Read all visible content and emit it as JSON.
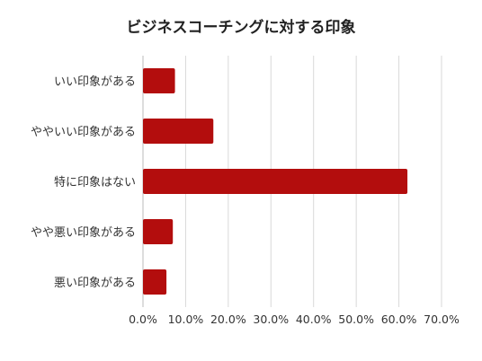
{
  "chart_data": {
    "type": "bar",
    "orientation": "horizontal",
    "title": "ビジネスコーチングに対する印象",
    "categories": [
      "いい印象がある",
      "ややいい印象がある",
      "特に印象はない",
      "やや悪い印象がある",
      "悪い印象がある"
    ],
    "values": [
      7.5,
      16.5,
      62.0,
      7.0,
      5.5
    ],
    "value_unit": "%",
    "xlim": [
      0,
      70
    ],
    "xticks": [
      "0.0%",
      "10.0%",
      "20.0%",
      "30.0%",
      "40.0%",
      "50.0%",
      "60.0%",
      "70.0%"
    ],
    "xtick_values": [
      0,
      10,
      20,
      30,
      40,
      50,
      60,
      70
    ],
    "grid": true,
    "legend": "none",
    "bar_color": "#b30d0d"
  }
}
